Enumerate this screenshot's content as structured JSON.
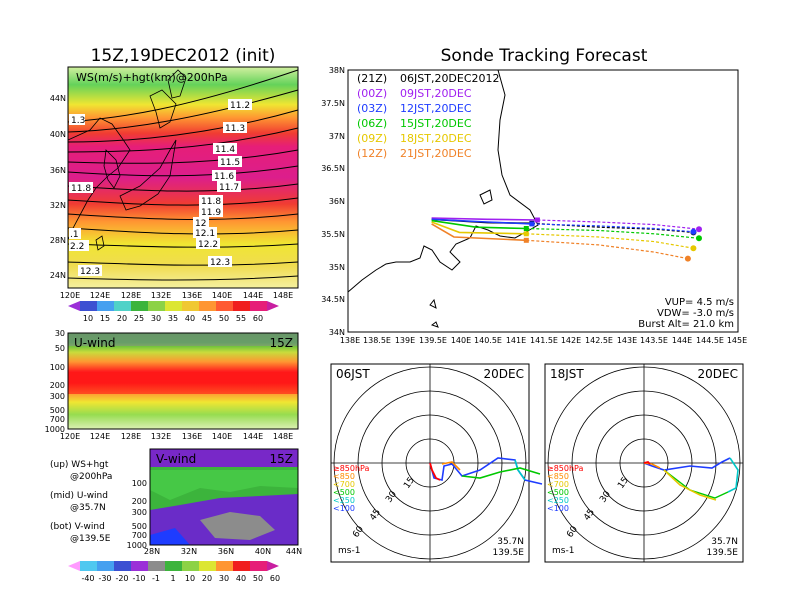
{
  "left": {
    "title": "15Z,19DEC2012 (init)",
    "top_label": "WS(m/s)+hgt(km)@200hPa",
    "lat_ticks": [
      "44N",
      "40N",
      "36N",
      "32N",
      "28N",
      "24N"
    ],
    "lon_ticks": [
      "120E",
      "124E",
      "128E",
      "132E",
      "136E",
      "140E",
      "144E",
      "148E"
    ],
    "colorbar1": [
      "10",
      "15",
      "20",
      "25",
      "30",
      "35",
      "40",
      "45",
      "50",
      "55",
      "60"
    ],
    "contour_labels": [
      "1.3",
      "11.2",
      "11.3",
      "11.4",
      "11.5",
      "11.6",
      "11.7",
      "11.8",
      "11.8",
      "11.9",
      "12",
      "12.1",
      "12.2",
      "12.3",
      "12.3",
      ".1",
      "2.2"
    ],
    "uwind_label": "U-wind",
    "uwind_time": "15Z",
    "plev_ticks": [
      "30",
      "50",
      "100",
      "200",
      "300",
      "500",
      "700",
      "1000"
    ],
    "vwind_label": "V-wind",
    "vwind_time": "15Z",
    "plev_ticks2": [
      "100",
      "200",
      "300",
      "500",
      "700",
      "1000"
    ],
    "vwind_lat_ticks": [
      "28N",
      "32N",
      "36N",
      "40N",
      "44N"
    ],
    "notes": [
      "(up) WS+hgt",
      "@200hPa",
      "(mid) U-wind",
      "@35.7N",
      "(bot) V-wind",
      "@139.5E"
    ],
    "colorbar2": [
      "-40",
      "-30",
      "-20",
      "-10",
      "-1",
      "1",
      "10",
      "20",
      "30",
      "40",
      "50",
      "60"
    ]
  },
  "right": {
    "title": "Sonde Tracking Forecast",
    "legend": [
      {
        "utc": "(21Z)",
        "jst": "06JST,20DEC2012",
        "color": "#000000"
      },
      {
        "utc": "(00Z)",
        "jst": "09JST,20DEC",
        "color": "#a020f0"
      },
      {
        "utc": "(03Z)",
        "jst": "12JST,20DEC",
        "color": "#1e3cff"
      },
      {
        "utc": "(06Z)",
        "jst": "15JST,20DEC",
        "color": "#00c800"
      },
      {
        "utc": "(09Z)",
        "jst": "18JST,20DEC",
        "color": "#e6c800"
      },
      {
        "utc": "(12Z)",
        "jst": "21JST,20DEC",
        "color": "#f08228"
      }
    ],
    "lat_ticks": [
      "38N",
      "37.5N",
      "37N",
      "36.5N",
      "36N",
      "35.5N",
      "35N",
      "34.5N",
      "34N"
    ],
    "lon_ticks": [
      "138E",
      "138.5E",
      "139E",
      "139.5E",
      "140E",
      "140.5E",
      "141E",
      "141.5E",
      "142E",
      "142.5E",
      "143E",
      "143.5E",
      "144E",
      "144.5E",
      "145E"
    ],
    "params": [
      "VUP= 4.5 m/s",
      "VDW= -3.0 m/s",
      "Burst Alt= 21.0 km"
    ],
    "hodo1": {
      "time": "06JST",
      "date": "20DEC",
      "lat": "35.7N",
      "lon": "139.5E",
      "unit": "ms-1"
    },
    "hodo2": {
      "time": "18JST",
      "date": "20DEC",
      "lat": "35.7N",
      "lon": "139.5E",
      "unit": "ms-1"
    },
    "hodo_rings": [
      "15",
      "30",
      "45",
      "60"
    ],
    "hodo_levels": [
      {
        "label": "≥850hPa",
        "color": "#ff0000"
      },
      {
        "label": "<850",
        "color": "#ff8c00"
      },
      {
        "label": "<700",
        "color": "#e6c800"
      },
      {
        "label": "<500",
        "color": "#00c800"
      },
      {
        "label": "<250",
        "color": "#00c8c8"
      },
      {
        "label": "<100",
        "color": "#1e3cff"
      }
    ]
  },
  "chart_data": [
    {
      "type": "heatmap",
      "title": "15Z,19DEC2012 (init)",
      "subtitle": "WS(m/s)+hgt(km)@200hPa",
      "x_range": [
        "120E",
        "150E"
      ],
      "y_range": [
        "22N",
        "47N"
      ],
      "colorbar": [
        10,
        15,
        20,
        25,
        30,
        35,
        40,
        45,
        50,
        55,
        60
      ],
      "contours_km": [
        11.2,
        11.3,
        11.4,
        11.5,
        11.6,
        11.7,
        11.8,
        11.9,
        12,
        12.1,
        12.2,
        12.3
      ]
    },
    {
      "type": "heatmap",
      "title": "U-wind",
      "subtitle": "15Z",
      "x_range": [
        "120E",
        "150E"
      ],
      "y_ticks_hPa": [
        30,
        50,
        100,
        200,
        300,
        500,
        700,
        1000
      ]
    },
    {
      "type": "heatmap",
      "title": "V-wind",
      "subtitle": "15Z",
      "x_range": [
        "28N",
        "44N"
      ],
      "y_ticks_hPa": [
        100,
        200,
        300,
        500,
        700,
        1000
      ],
      "colorbar": [
        -40,
        -30,
        -20,
        -10,
        -1,
        1,
        10,
        20,
        30,
        40,
        50,
        60
      ]
    },
    {
      "type": "line",
      "title": "Sonde Tracking Forecast",
      "x_range": [
        138,
        145
      ],
      "y_range": [
        34,
        38
      ],
      "launch": [
        139.5,
        35.7
      ],
      "series": [
        {
          "name": "06JST,20DEC2012",
          "points": [
            [
              139.5,
              35.72
            ],
            [
              140.5,
              35.67
            ],
            [
              141.3,
              35.66
            ],
            [
              142.5,
              35.6
            ],
            [
              143.5,
              35.57
            ],
            [
              144.2,
              35.52
            ]
          ]
        },
        {
          "name": "09JST,20DEC",
          "points": [
            [
              139.5,
              35.74
            ],
            [
              140.5,
              35.72
            ],
            [
              141.4,
              35.71
            ],
            [
              142.5,
              35.68
            ],
            [
              143.5,
              35.64
            ],
            [
              144.3,
              35.57
            ]
          ]
        },
        {
          "name": "12JST,20DEC",
          "points": [
            [
              139.5,
              35.72
            ],
            [
              140.5,
              35.68
            ],
            [
              141.3,
              35.65
            ],
            [
              142.5,
              35.62
            ],
            [
              143.5,
              35.58
            ],
            [
              144.2,
              35.53
            ]
          ]
        },
        {
          "name": "15JST,20DEC",
          "points": [
            [
              139.5,
              35.7
            ],
            [
              140.3,
              35.6
            ],
            [
              141.2,
              35.58
            ],
            [
              142.5,
              35.55
            ],
            [
              143.5,
              35.5
            ],
            [
              144.3,
              35.43
            ]
          ]
        },
        {
          "name": "18JST,20DEC",
          "points": [
            [
              139.5,
              35.68
            ],
            [
              140,
              35.52
            ],
            [
              141.2,
              35.5
            ],
            [
              142.5,
              35.45
            ],
            [
              143.5,
              35.38
            ],
            [
              144.2,
              35.28
            ]
          ]
        },
        {
          "name": "21JST,20DEC",
          "points": [
            [
              139.5,
              35.65
            ],
            [
              139.9,
              35.45
            ],
            [
              141.2,
              35.4
            ],
            [
              142.5,
              35.33
            ],
            [
              143.5,
              35.22
            ],
            [
              144.1,
              35.12
            ]
          ]
        }
      ]
    }
  ]
}
